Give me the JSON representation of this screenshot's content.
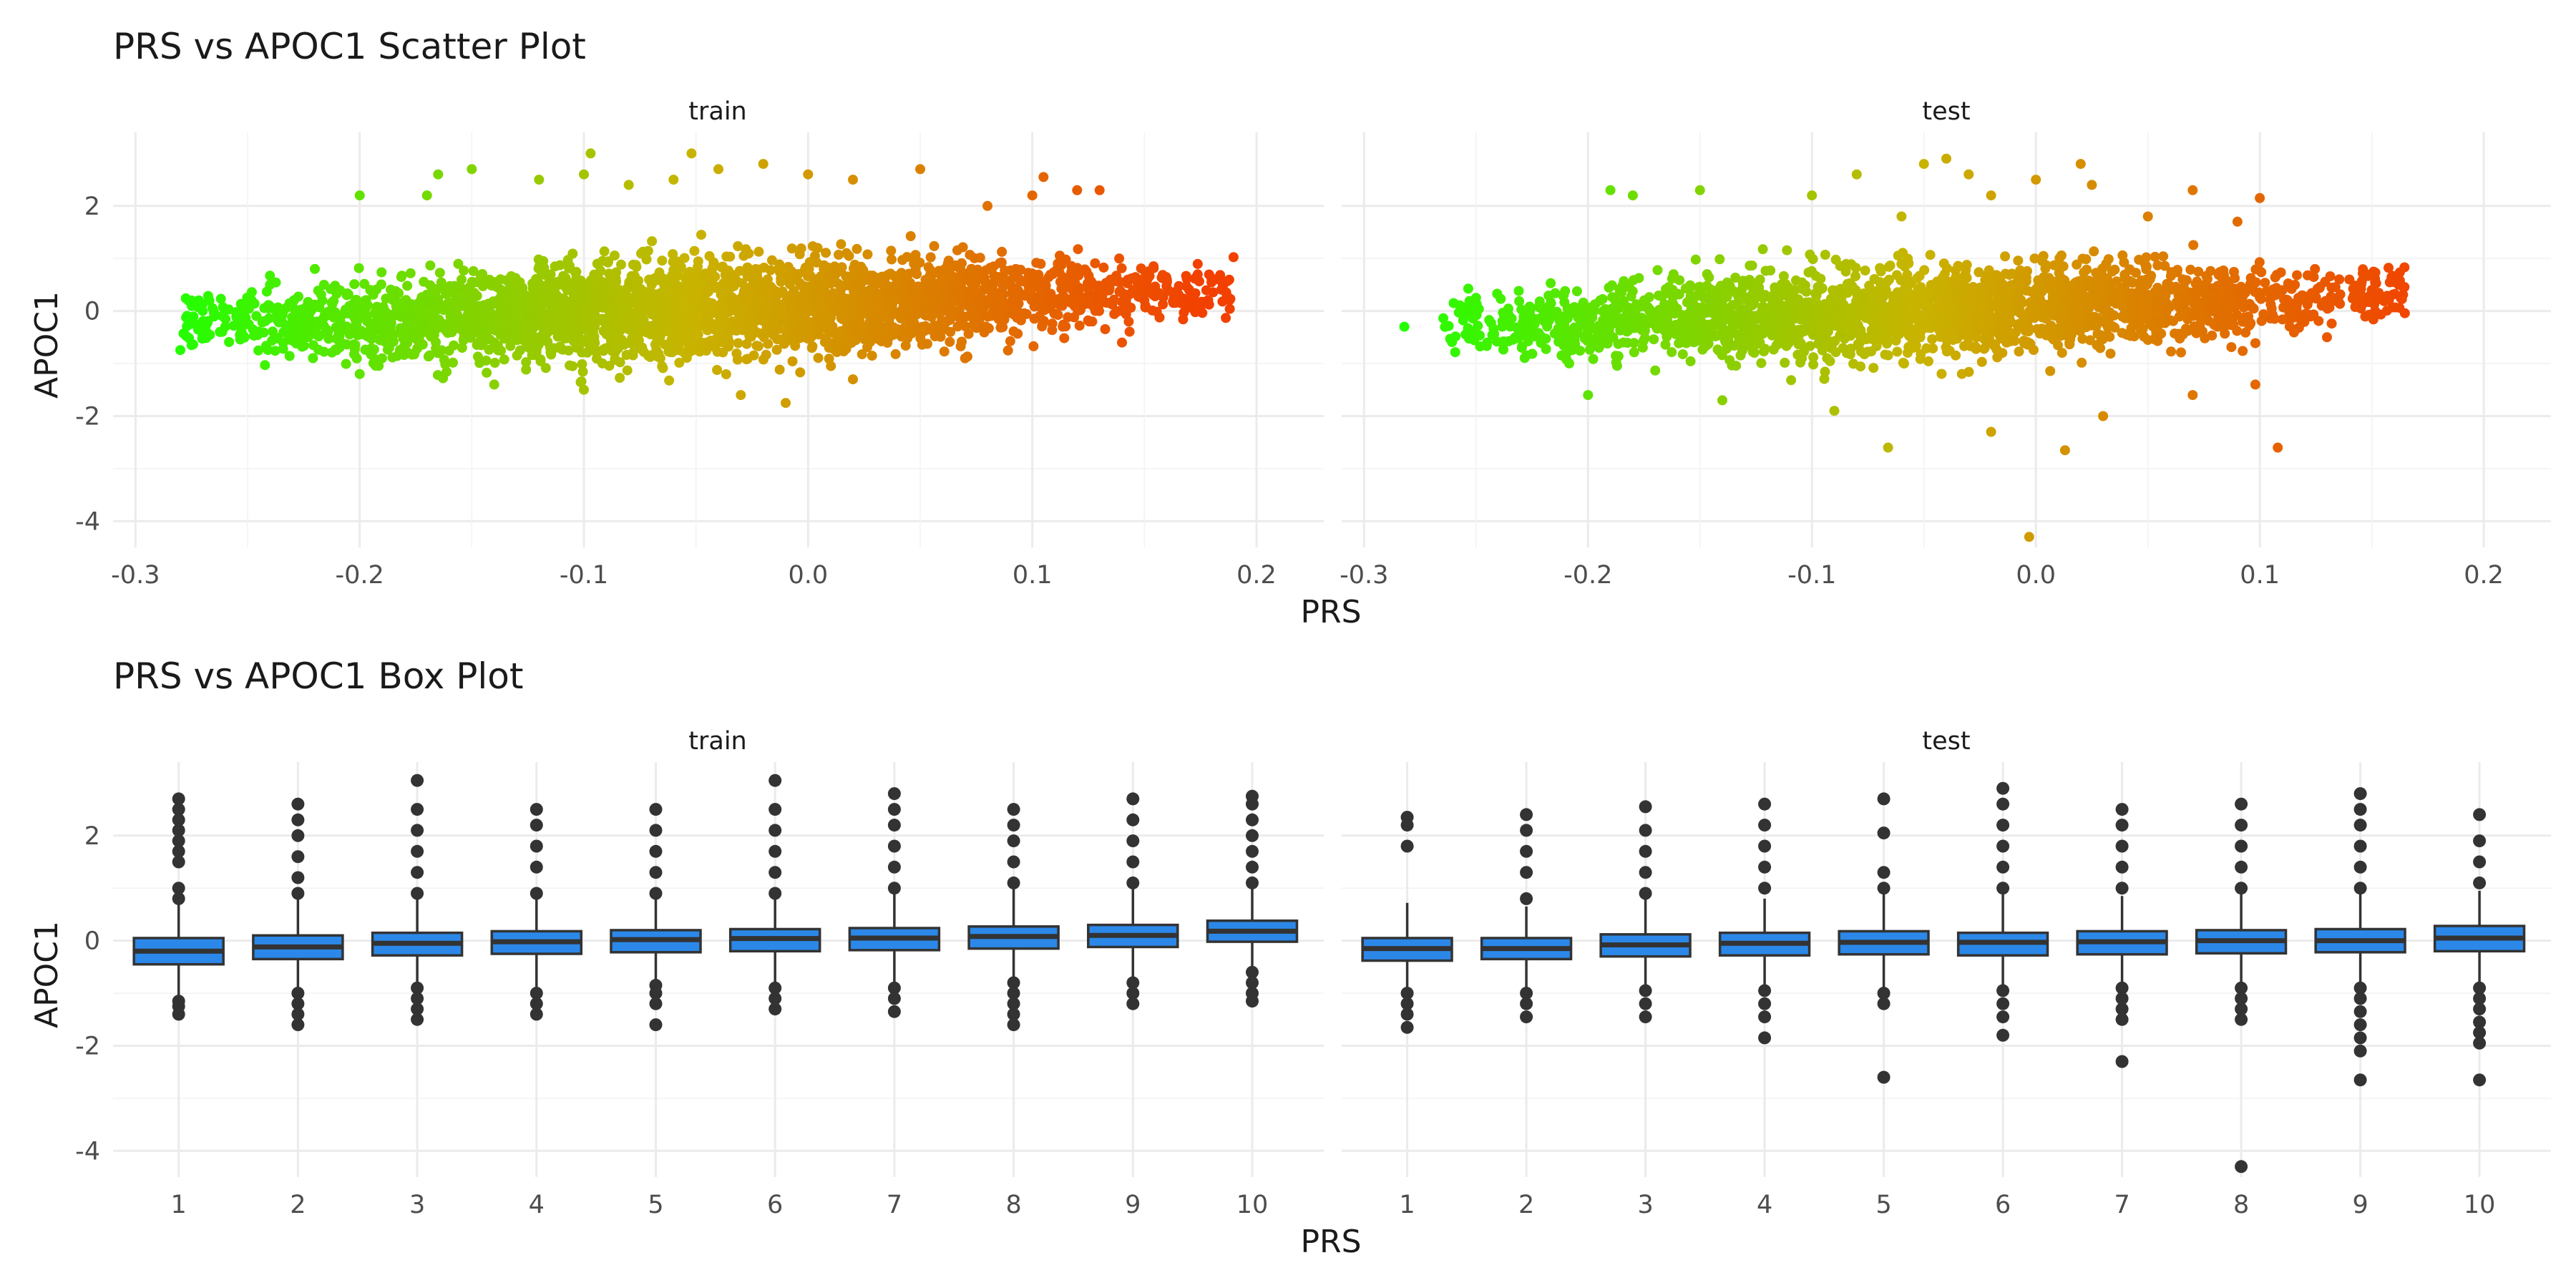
{
  "chart_data": [
    {
      "type": "scatter",
      "title": "PRS vs APOC1 Scatter Plot",
      "xlabel": "PRS",
      "ylabel": "APOC1",
      "xlim": [
        -0.31,
        0.23
      ],
      "ylim": [
        -4.5,
        3.4
      ],
      "xticks": [
        -0.3,
        -0.2,
        -0.1,
        0.0,
        0.1,
        0.2
      ],
      "xtick_labels": [
        "-0.3",
        "-0.2",
        "-0.1",
        "0.0",
        "0.1",
        "0.2"
      ],
      "yticks": [
        -4,
        -2,
        0,
        2
      ],
      "ytick_labels": [
        "-4",
        "-2",
        "0",
        "2"
      ],
      "grid": true,
      "legend": "none",
      "color_scale": {
        "low": "#22ff00",
        "mid": "#c8b400",
        "high": "#f24000",
        "mapped_to": "PRS"
      },
      "panels": [
        {
          "label": "train",
          "x_range": [
            -0.28,
            0.19
          ],
          "core_y": {
            "at_min_x": -0.3,
            "at_max_x": 0.4,
            "spread": 0.75
          },
          "points": [
            {
              "x": -0.275,
              "y": -0.65
            },
            {
              "x": -0.27,
              "y": 0.0
            },
            {
              "x": -0.26,
              "y": -0.3
            },
            {
              "x": -0.25,
              "y": 0.1
            },
            {
              "x": -0.24,
              "y": 0.5
            },
            {
              "x": -0.2,
              "y": 2.2
            },
            {
              "x": -0.19,
              "y": -0.9
            },
            {
              "x": -0.17,
              "y": 2.2
            },
            {
              "x": -0.165,
              "y": 2.6
            },
            {
              "x": -0.15,
              "y": 2.7
            },
            {
              "x": -0.12,
              "y": 2.5
            },
            {
              "x": -0.1,
              "y": 2.6
            },
            {
              "x": -0.097,
              "y": 3.0
            },
            {
              "x": -0.08,
              "y": 2.4
            },
            {
              "x": -0.06,
              "y": 2.5
            },
            {
              "x": -0.052,
              "y": 3.0
            },
            {
              "x": -0.04,
              "y": 2.7
            },
            {
              "x": -0.02,
              "y": 2.8
            },
            {
              "x": 0.0,
              "y": 2.6
            },
            {
              "x": 0.02,
              "y": 2.5
            },
            {
              "x": 0.05,
              "y": 2.7
            },
            {
              "x": 0.08,
              "y": 2.0
            },
            {
              "x": 0.1,
              "y": 2.2
            },
            {
              "x": 0.105,
              "y": 2.55
            },
            {
              "x": 0.12,
              "y": 2.3
            },
            {
              "x": 0.13,
              "y": 2.3
            },
            {
              "x": -0.22,
              "y": 0.8
            },
            {
              "x": -0.2,
              "y": -1.2
            },
            {
              "x": -0.14,
              "y": -1.4
            },
            {
              "x": -0.1,
              "y": -1.5
            },
            {
              "x": -0.03,
              "y": -1.6
            },
            {
              "x": -0.01,
              "y": -1.75
            },
            {
              "x": 0.02,
              "y": -1.3
            },
            {
              "x": 0.07,
              "y": -0.9
            },
            {
              "x": 0.14,
              "y": -0.6
            },
            {
              "x": 0.15,
              "y": 0.2
            },
            {
              "x": 0.16,
              "y": 0.6
            },
            {
              "x": 0.17,
              "y": 0.4
            },
            {
              "x": 0.18,
              "y": 0.55
            },
            {
              "x": 0.185,
              "y": 0.5
            }
          ]
        },
        {
          "label": "test",
          "x_range": [
            -0.265,
            0.165
          ],
          "core_y": {
            "at_min_x": -0.3,
            "at_max_x": 0.3,
            "spread": 0.7
          },
          "points": [
            {
              "x": -0.282,
              "y": -0.3
            },
            {
              "x": -0.26,
              "y": 0.15
            },
            {
              "x": -0.25,
              "y": 0.25
            },
            {
              "x": -0.245,
              "y": -0.6
            },
            {
              "x": -0.2,
              "y": -1.6
            },
            {
              "x": -0.19,
              "y": 2.3
            },
            {
              "x": -0.18,
              "y": 2.2
            },
            {
              "x": -0.15,
              "y": 2.3
            },
            {
              "x": -0.14,
              "y": -1.7
            },
            {
              "x": -0.1,
              "y": 2.2
            },
            {
              "x": -0.08,
              "y": 2.6
            },
            {
              "x": -0.06,
              "y": 1.8
            },
            {
              "x": -0.05,
              "y": 2.8
            },
            {
              "x": -0.04,
              "y": 2.9
            },
            {
              "x": -0.03,
              "y": 2.6
            },
            {
              "x": -0.02,
              "y": 2.2
            },
            {
              "x": 0.0,
              "y": 2.5
            },
            {
              "x": 0.02,
              "y": 2.8
            },
            {
              "x": 0.025,
              "y": 2.4
            },
            {
              "x": 0.05,
              "y": 1.8
            },
            {
              "x": 0.07,
              "y": 2.3
            },
            {
              "x": 0.09,
              "y": 1.7
            },
            {
              "x": 0.1,
              "y": 2.15
            },
            {
              "x": -0.09,
              "y": -1.9
            },
            {
              "x": -0.066,
              "y": -2.6
            },
            {
              "x": -0.02,
              "y": -2.3
            },
            {
              "x": -0.003,
              "y": -4.3
            },
            {
              "x": 0.013,
              "y": -2.65
            },
            {
              "x": 0.03,
              "y": -2.0
            },
            {
              "x": 0.07,
              "y": -1.6
            },
            {
              "x": 0.098,
              "y": -1.4
            },
            {
              "x": 0.108,
              "y": -2.6
            },
            {
              "x": 0.13,
              "y": -0.5
            },
            {
              "x": 0.14,
              "y": 0.6
            },
            {
              "x": 0.15,
              "y": 0.4
            },
            {
              "x": 0.16,
              "y": 0.55
            },
            {
              "x": 0.162,
              "y": 0.5
            }
          ]
        }
      ]
    },
    {
      "type": "box",
      "title": "PRS vs APOC1 Box Plot",
      "xlabel": "PRS",
      "ylabel": "APOC1",
      "categories": [
        "1",
        "2",
        "3",
        "4",
        "5",
        "6",
        "7",
        "8",
        "9",
        "10"
      ],
      "ylim": [
        -4.5,
        3.4
      ],
      "yticks": [
        -4,
        -2,
        0,
        2
      ],
      "ytick_labels": [
        "-4",
        "-2",
        "0",
        "2"
      ],
      "grid": true,
      "box_fill": "#2b88e8",
      "panels": [
        {
          "label": "train",
          "boxes": [
            {
              "q1": -0.45,
              "median": -0.2,
              "q3": 0.05,
              "whisker_low": -1.05,
              "whisker_high": 0.7,
              "outliers": [
                -1.15,
                -1.25,
                -1.4,
                0.8,
                1.0,
                1.5,
                1.7,
                1.9,
                2.1,
                2.3,
                2.5,
                2.7
              ]
            },
            {
              "q1": -0.35,
              "median": -0.12,
              "q3": 0.1,
              "whisker_low": -0.9,
              "whisker_high": 0.8,
              "outliers": [
                -1.0,
                -1.2,
                -1.4,
                -1.6,
                0.9,
                1.2,
                1.6,
                2.0,
                2.3,
                2.6
              ]
            },
            {
              "q1": -0.28,
              "median": -0.05,
              "q3": 0.15,
              "whisker_low": -0.85,
              "whisker_high": 0.8,
              "outliers": [
                -0.9,
                -1.1,
                -1.3,
                -1.5,
                0.9,
                1.3,
                1.7,
                2.1,
                2.5,
                3.05
              ]
            },
            {
              "q1": -0.25,
              "median": -0.02,
              "q3": 0.18,
              "whisker_low": -0.9,
              "whisker_high": 0.85,
              "outliers": [
                -1.0,
                -1.2,
                -1.4,
                0.9,
                1.4,
                1.8,
                2.2,
                2.5
              ]
            },
            {
              "q1": -0.22,
              "median": 0.02,
              "q3": 0.2,
              "whisker_low": -0.75,
              "whisker_high": 0.85,
              "outliers": [
                -0.85,
                -1.0,
                -1.2,
                -1.6,
                0.9,
                1.3,
                1.7,
                2.1,
                2.5
              ]
            },
            {
              "q1": -0.2,
              "median": 0.04,
              "q3": 0.22,
              "whisker_low": -0.8,
              "whisker_high": 0.85,
              "outliers": [
                -0.9,
                -1.1,
                -1.3,
                0.9,
                1.3,
                1.7,
                2.1,
                2.5,
                3.05
              ]
            },
            {
              "q1": -0.18,
              "median": 0.05,
              "q3": 0.24,
              "whisker_low": -0.8,
              "whisker_high": 0.9,
              "outliers": [
                -0.9,
                -1.1,
                -1.35,
                1.0,
                1.4,
                1.8,
                2.2,
                2.5,
                2.8
              ]
            },
            {
              "q1": -0.15,
              "median": 0.08,
              "q3": 0.27,
              "whisker_low": -0.75,
              "whisker_high": 1.0,
              "outliers": [
                -0.8,
                -1.0,
                -1.2,
                -1.4,
                -1.6,
                1.1,
                1.5,
                1.9,
                2.2,
                2.5
              ]
            },
            {
              "q1": -0.12,
              "median": 0.1,
              "q3": 0.3,
              "whisker_low": -0.75,
              "whisker_high": 1.0,
              "outliers": [
                -0.8,
                -1.0,
                -1.2,
                1.1,
                1.5,
                1.9,
                2.3,
                2.7
              ]
            },
            {
              "q1": -0.02,
              "median": 0.18,
              "q3": 0.38,
              "whisker_low": -0.55,
              "whisker_high": 1.0,
              "outliers": [
                -0.6,
                -0.8,
                -1.0,
                -1.15,
                1.1,
                1.4,
                1.7,
                2.0,
                2.3,
                2.6,
                2.75
              ]
            }
          ]
        },
        {
          "label": "test",
          "boxes": [
            {
              "q1": -0.38,
              "median": -0.15,
              "q3": 0.05,
              "whisker_low": -0.9,
              "whisker_high": 0.72,
              "outliers": [
                -1.0,
                -1.2,
                -1.4,
                -1.65,
                1.8,
                2.2,
                2.35
              ]
            },
            {
              "q1": -0.35,
              "median": -0.15,
              "q3": 0.05,
              "whisker_low": -0.9,
              "whisker_high": 0.65,
              "outliers": [
                -1.0,
                -1.2,
                -1.45,
                0.8,
                1.3,
                1.7,
                2.1,
                2.4
              ]
            },
            {
              "q1": -0.3,
              "median": -0.08,
              "q3": 0.12,
              "whisker_low": -0.85,
              "whisker_high": 0.8,
              "outliers": [
                -0.95,
                -1.2,
                -1.45,
                0.9,
                1.3,
                1.7,
                2.1,
                2.55
              ]
            },
            {
              "q1": -0.28,
              "median": -0.05,
              "q3": 0.15,
              "whisker_low": -0.85,
              "whisker_high": 0.8,
              "outliers": [
                -0.95,
                -1.2,
                -1.45,
                -1.85,
                1.0,
                1.4,
                1.8,
                2.2,
                2.6
              ]
            },
            {
              "q1": -0.26,
              "median": -0.03,
              "q3": 0.18,
              "whisker_low": -0.9,
              "whisker_high": 0.9,
              "outliers": [
                -1.0,
                -1.2,
                -2.6,
                1.0,
                1.3,
                2.05,
                2.7
              ]
            },
            {
              "q1": -0.28,
              "median": -0.03,
              "q3": 0.15,
              "whisker_low": -0.85,
              "whisker_high": 0.9,
              "outliers": [
                -0.95,
                -1.2,
                -1.45,
                -1.8,
                1.0,
                1.4,
                1.8,
                2.2,
                2.6,
                2.9
              ]
            },
            {
              "q1": -0.26,
              "median": -0.02,
              "q3": 0.18,
              "whisker_low": -0.8,
              "whisker_high": 0.85,
              "outliers": [
                -0.9,
                -1.1,
                -1.3,
                -1.5,
                -2.3,
                1.0,
                1.4,
                1.8,
                2.2,
                2.5
              ]
            },
            {
              "q1": -0.24,
              "median": 0.0,
              "q3": 0.2,
              "whisker_low": -0.8,
              "whisker_high": 0.9,
              "outliers": [
                -0.9,
                -1.1,
                -1.3,
                -1.5,
                -4.3,
                1.0,
                1.4,
                1.8,
                2.2,
                2.6
              ]
            },
            {
              "q1": -0.22,
              "median": 0.0,
              "q3": 0.22,
              "whisker_low": -0.8,
              "whisker_high": 0.9,
              "outliers": [
                -0.9,
                -1.1,
                -1.35,
                -1.6,
                -1.85,
                -2.1,
                -2.65,
                1.0,
                1.4,
                1.8,
                2.2,
                2.5,
                2.8
              ]
            },
            {
              "q1": -0.2,
              "median": 0.05,
              "q3": 0.28,
              "whisker_low": -0.8,
              "whisker_high": 0.95,
              "outliers": [
                -0.9,
                -1.1,
                -1.3,
                -1.55,
                -1.75,
                -1.95,
                -2.65,
                1.1,
                1.5,
                1.9,
                2.4
              ]
            }
          ]
        }
      ]
    }
  ]
}
